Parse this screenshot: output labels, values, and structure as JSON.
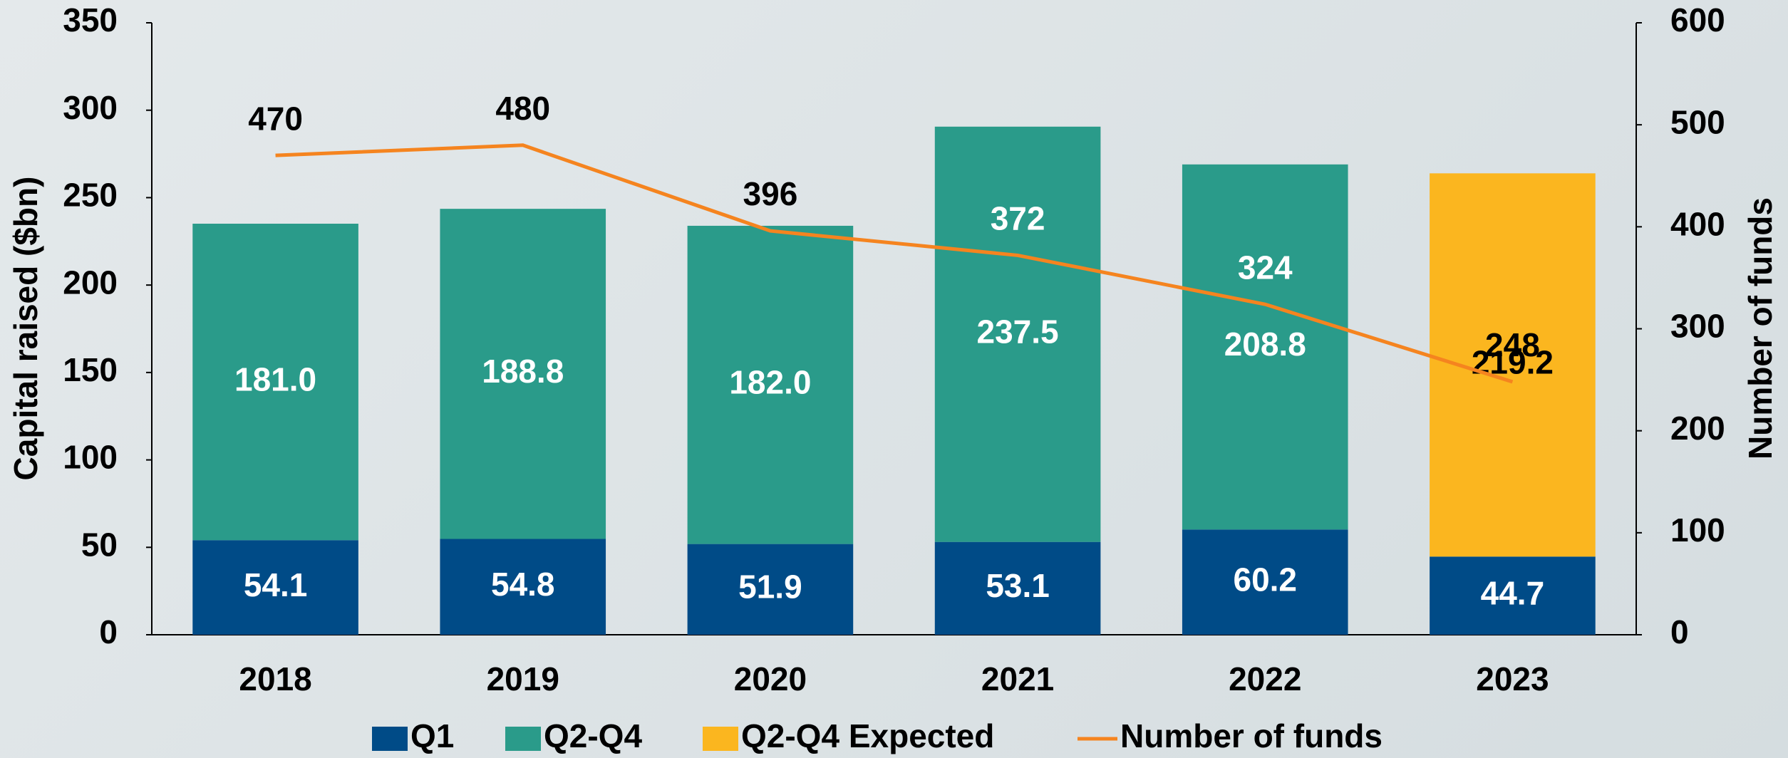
{
  "chart_data": {
    "type": "bar",
    "categories": [
      "2018",
      "2019",
      "2020",
      "2021",
      "2022",
      "2023"
    ],
    "series": [
      {
        "name": "Q1",
        "color": "#004b87",
        "values": [
          54.1,
          54.8,
          51.9,
          53.1,
          60.2,
          44.7
        ]
      },
      {
        "name": "Q2-Q4",
        "color": "#2a9b8a",
        "values": [
          181,
          188.8,
          182,
          237.5,
          208.8,
          null
        ],
        "value_labels": [
          "181.0",
          "188.8",
          "182.0",
          "237.5",
          "208.8",
          null
        ]
      },
      {
        "name": "Q2-Q4 Expected",
        "color": "#fbb61f",
        "values": [
          null,
          null,
          null,
          null,
          null,
          219.2
        ]
      },
      {
        "name": "Number of funds",
        "type": "line",
        "axis": "y2",
        "color": "#f5841f",
        "values": [
          470,
          480,
          396,
          372,
          324,
          248
        ]
      }
    ],
    "ylabel": "Capital raised ($bn)",
    "y2label": "Number of funds",
    "ylim": [
      0,
      350
    ],
    "yticks": [
      0,
      50,
      100,
      150,
      200,
      250,
      300,
      350
    ],
    "y2lim": [
      0,
      600
    ],
    "y2ticks": [
      0,
      100,
      200,
      300,
      400,
      500,
      600
    ],
    "legend": "bottom"
  }
}
